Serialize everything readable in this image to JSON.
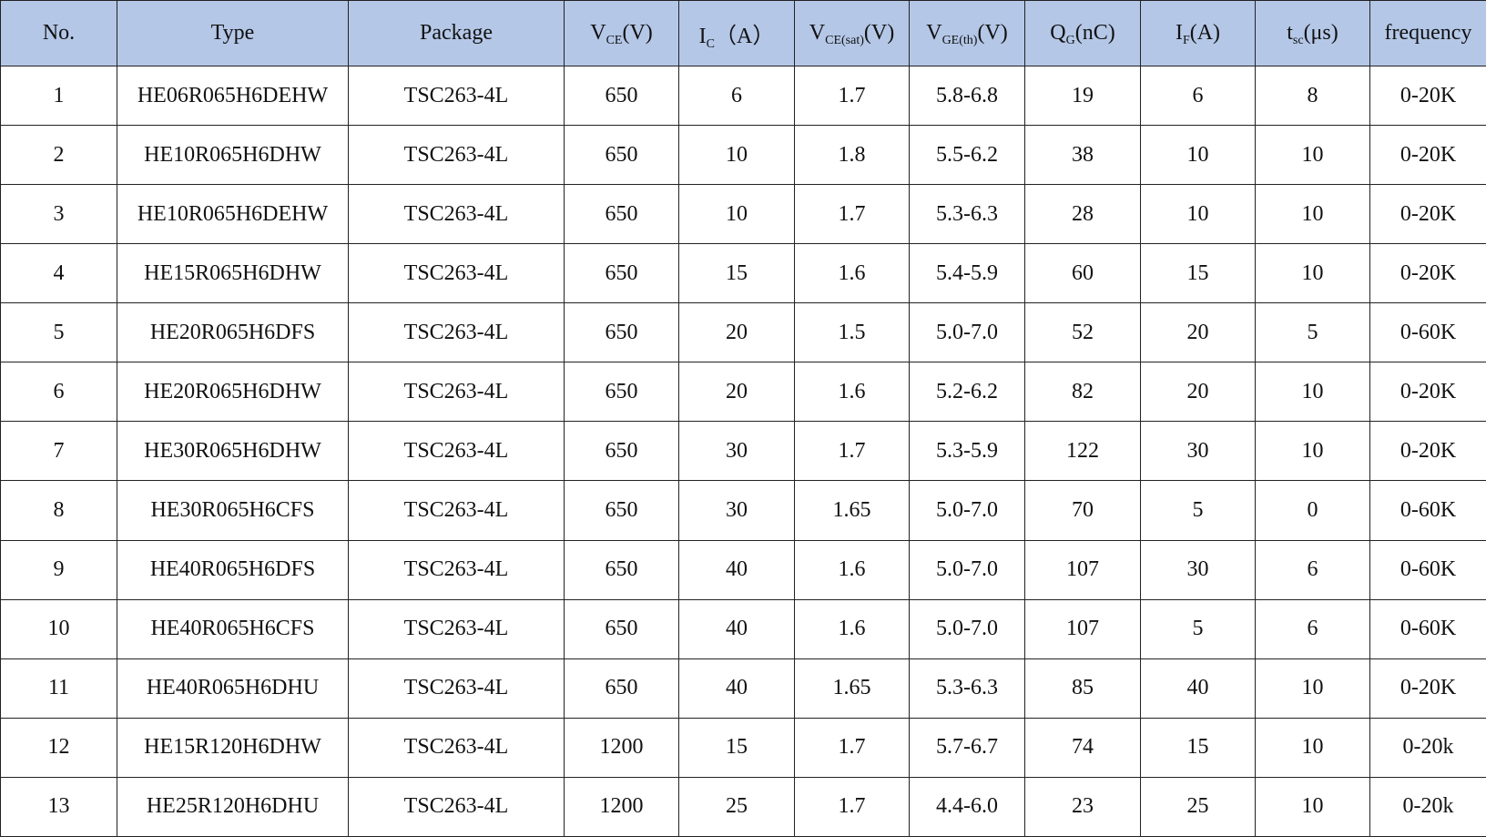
{
  "table": {
    "header": [
      {
        "main": "No."
      },
      {
        "main": "Type"
      },
      {
        "main": "Package"
      },
      {
        "main": "V",
        "sub": "CE",
        "tail": "(V)"
      },
      {
        "main": "I",
        "sub": "C",
        "tail": "（A）"
      },
      {
        "main": "V",
        "sub": "CE(sat)",
        "tail": "(V)"
      },
      {
        "main": "V",
        "sub": "GE(th)",
        "tail": "(V)"
      },
      {
        "main": "Q",
        "sub": "G",
        "tail": "(nC)"
      },
      {
        "main": "I",
        "sub": "F",
        "tail": "(A)"
      },
      {
        "main": "t",
        "sub": "sc",
        "tail": "(μs)"
      },
      {
        "main": "frequency"
      }
    ],
    "rows": [
      [
        1,
        "HE06R065H6DEHW",
        "TSC263-4L",
        650,
        6,
        1.7,
        "5.8-6.8",
        19,
        6,
        8,
        "0-20K"
      ],
      [
        2,
        "HE10R065H6DHW",
        "TSC263-4L",
        650,
        10,
        1.8,
        "5.5-6.2",
        38,
        10,
        10,
        "0-20K"
      ],
      [
        3,
        "HE10R065H6DEHW",
        "TSC263-4L",
        650,
        10,
        1.7,
        "5.3-6.3",
        28,
        10,
        10,
        "0-20K"
      ],
      [
        4,
        "HE15R065H6DHW",
        "TSC263-4L",
        650,
        15,
        1.6,
        "5.4-5.9",
        60,
        15,
        10,
        "0-20K"
      ],
      [
        5,
        "HE20R065H6DFS",
        "TSC263-4L",
        650,
        20,
        1.5,
        "5.0-7.0",
        52,
        20,
        5,
        "0-60K"
      ],
      [
        6,
        "HE20R065H6DHW",
        "TSC263-4L",
        650,
        20,
        1.6,
        "5.2-6.2",
        82,
        20,
        10,
        "0-20K"
      ],
      [
        7,
        "HE30R065H6DHW",
        "TSC263-4L",
        650,
        30,
        1.7,
        "5.3-5.9",
        122,
        30,
        10,
        "0-20K"
      ],
      [
        8,
        "HE30R065H6CFS",
        "TSC263-4L",
        650,
        30,
        1.65,
        "5.0-7.0",
        70,
        5,
        0,
        "0-60K"
      ],
      [
        9,
        "HE40R065H6DFS",
        "TSC263-4L",
        650,
        40,
        1.6,
        "5.0-7.0",
        107,
        30,
        6,
        "0-60K"
      ],
      [
        10,
        "HE40R065H6CFS",
        "TSC263-4L",
        650,
        40,
        1.6,
        "5.0-7.0",
        107,
        5,
        6,
        "0-60K"
      ],
      [
        11,
        "HE40R065H6DHU",
        "TSC263-4L",
        650,
        40,
        1.65,
        "5.3-6.3",
        85,
        40,
        10,
        "0-20K"
      ],
      [
        12,
        "HE15R120H6DHW",
        "TSC263-4L",
        1200,
        15,
        1.7,
        "5.7-6.7",
        74,
        15,
        10,
        "0-20k"
      ],
      [
        13,
        "HE25R120H6DHU",
        "TSC263-4L",
        1200,
        25,
        1.7,
        "4.4-6.0",
        23,
        25,
        10,
        "0-20k"
      ]
    ]
  }
}
